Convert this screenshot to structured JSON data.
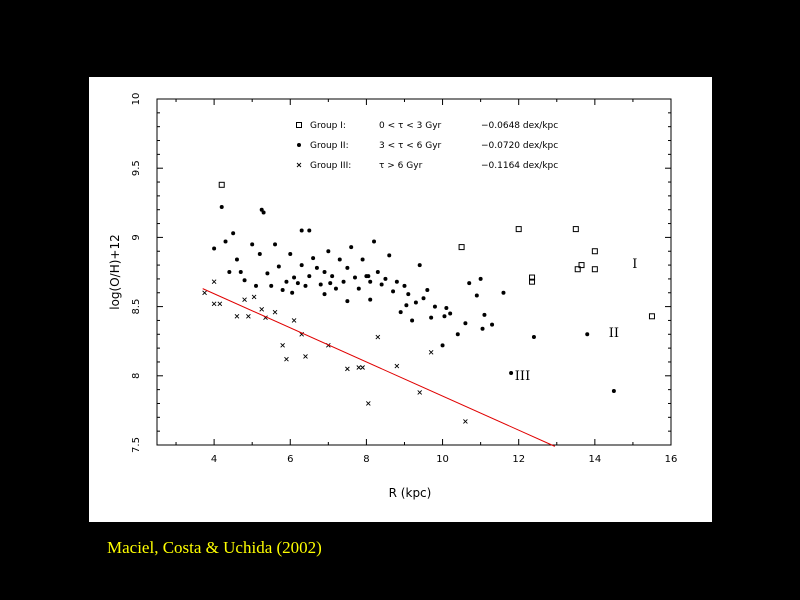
{
  "credit": "Maciel, Costa & Uchida (2002)",
  "chart_data": {
    "type": "scatter",
    "title": "",
    "xlabel": "R (kpc)",
    "ylabel": "log(O/H)+12",
    "xlim": [
      2.5,
      16
    ],
    "ylim": [
      7.5,
      10
    ],
    "xticks": [
      "4",
      "6",
      "8",
      "10",
      "12",
      "14",
      "16"
    ],
    "yticks": [
      "7.5",
      "8",
      "8.5",
      "9",
      "9.5",
      "10"
    ],
    "legend": [
      {
        "marker": "square",
        "group": "Group I:",
        "age": "0 < τ < 3 Gyr",
        "gradient": "−0.0648 dex/kpc"
      },
      {
        "marker": "circle",
        "group": "Group II:",
        "age": "3 < τ < 6 Gyr",
        "gradient": "−0.0720 dex/kpc"
      },
      {
        "marker": "cross",
        "group": "Group III:",
        "age": "τ > 6 Gyr",
        "gradient": "−0.1164 dex/kpc"
      }
    ],
    "group_labels": [
      {
        "text": "I",
        "x": 15.05,
        "y": 8.78
      },
      {
        "text": "II",
        "x": 14.5,
        "y": 8.28
      },
      {
        "text": "III",
        "x": 12.1,
        "y": 7.97
      }
    ],
    "fit_line": {
      "color": "#e00000",
      "x": [
        3.7,
        12.95
      ],
      "y": [
        8.63,
        7.49
      ]
    },
    "series": [
      {
        "marker": "square",
        "points": [
          [
            4.2,
            9.38
          ],
          [
            10.5,
            8.93
          ],
          [
            12.35,
            8.71
          ],
          [
            12.35,
            8.68
          ],
          [
            13.55,
            8.77
          ],
          [
            13.65,
            8.8
          ],
          [
            14.0,
            8.9
          ],
          [
            15.5,
            8.43
          ],
          [
            12.0,
            9.06
          ],
          [
            13.5,
            9.06
          ],
          [
            14.0,
            8.77
          ]
        ]
      },
      {
        "marker": "circle",
        "points": [
          [
            4.2,
            9.22
          ],
          [
            4.3,
            8.97
          ],
          [
            4.5,
            9.03
          ],
          [
            4.6,
            8.84
          ],
          [
            4.7,
            8.75
          ],
          [
            4.8,
            8.69
          ],
          [
            5.0,
            8.95
          ],
          [
            5.1,
            8.65
          ],
          [
            5.2,
            8.88
          ],
          [
            5.3,
            9.18
          ],
          [
            5.4,
            8.74
          ],
          [
            5.5,
            8.65
          ],
          [
            5.6,
            8.95
          ],
          [
            5.7,
            8.79
          ],
          [
            5.8,
            8.62
          ],
          [
            5.9,
            8.68
          ],
          [
            6.0,
            8.88
          ],
          [
            6.1,
            8.71
          ],
          [
            6.2,
            8.67
          ],
          [
            6.3,
            8.8
          ],
          [
            6.3,
            9.05
          ],
          [
            6.4,
            8.65
          ],
          [
            6.5,
            8.72
          ],
          [
            6.5,
            9.05
          ],
          [
            6.6,
            8.85
          ],
          [
            6.7,
            8.78
          ],
          [
            6.8,
            8.66
          ],
          [
            6.9,
            8.75
          ],
          [
            6.9,
            8.59
          ],
          [
            7.0,
            8.9
          ],
          [
            7.1,
            8.72
          ],
          [
            7.2,
            8.63
          ],
          [
            7.3,
            8.84
          ],
          [
            7.4,
            8.68
          ],
          [
            7.5,
            8.78
          ],
          [
            7.5,
            8.54
          ],
          [
            7.6,
            8.93
          ],
          [
            7.7,
            8.71
          ],
          [
            7.8,
            8.63
          ],
          [
            7.9,
            8.84
          ],
          [
            8.0,
            8.72
          ],
          [
            8.1,
            8.68
          ],
          [
            8.1,
            8.55
          ],
          [
            8.2,
            8.97
          ],
          [
            8.3,
            8.75
          ],
          [
            8.4,
            8.66
          ],
          [
            8.5,
            8.7
          ],
          [
            8.6,
            8.87
          ],
          [
            8.7,
            8.61
          ],
          [
            8.8,
            8.68
          ],
          [
            8.9,
            8.46
          ],
          [
            9.0,
            8.65
          ],
          [
            9.1,
            8.59
          ],
          [
            9.2,
            8.4
          ],
          [
            9.3,
            8.53
          ],
          [
            9.4,
            8.8
          ],
          [
            9.5,
            8.56
          ],
          [
            9.6,
            8.62
          ],
          [
            9.7,
            8.42
          ],
          [
            9.8,
            8.5
          ],
          [
            10.0,
            8.22
          ],
          [
            10.1,
            8.49
          ],
          [
            10.2,
            8.45
          ],
          [
            10.4,
            8.3
          ],
          [
            10.6,
            8.38
          ],
          [
            10.7,
            8.67
          ],
          [
            10.9,
            8.58
          ],
          [
            11.0,
            8.7
          ],
          [
            11.1,
            8.44
          ],
          [
            11.3,
            8.37
          ],
          [
            11.6,
            8.6
          ],
          [
            11.8,
            8.02
          ],
          [
            12.4,
            8.28
          ],
          [
            13.8,
            8.3
          ],
          [
            14.5,
            7.89
          ],
          [
            4.0,
            8.92
          ],
          [
            4.4,
            8.75
          ],
          [
            5.25,
            9.2
          ],
          [
            6.05,
            8.6
          ],
          [
            7.05,
            8.67
          ],
          [
            8.05,
            8.72
          ],
          [
            9.05,
            8.51
          ],
          [
            10.05,
            8.43
          ],
          [
            11.05,
            8.34
          ]
        ]
      },
      {
        "marker": "cross",
        "points": [
          [
            3.75,
            8.6
          ],
          [
            4.0,
            8.68
          ],
          [
            4.0,
            8.52
          ],
          [
            4.15,
            8.52
          ],
          [
            4.6,
            8.43
          ],
          [
            4.9,
            8.43
          ],
          [
            5.05,
            8.57
          ],
          [
            5.25,
            8.48
          ],
          [
            5.35,
            8.42
          ],
          [
            5.8,
            8.22
          ],
          [
            5.9,
            8.12
          ],
          [
            6.1,
            8.4
          ],
          [
            6.3,
            8.3
          ],
          [
            6.4,
            8.14
          ],
          [
            7.0,
            8.22
          ],
          [
            7.5,
            8.05
          ],
          [
            7.8,
            8.06
          ],
          [
            7.9,
            8.06
          ],
          [
            8.05,
            7.8
          ],
          [
            8.3,
            8.28
          ],
          [
            8.8,
            8.07
          ],
          [
            9.4,
            7.88
          ],
          [
            9.7,
            8.17
          ],
          [
            10.6,
            7.67
          ],
          [
            5.6,
            8.46
          ],
          [
            4.8,
            8.55
          ]
        ]
      }
    ]
  }
}
